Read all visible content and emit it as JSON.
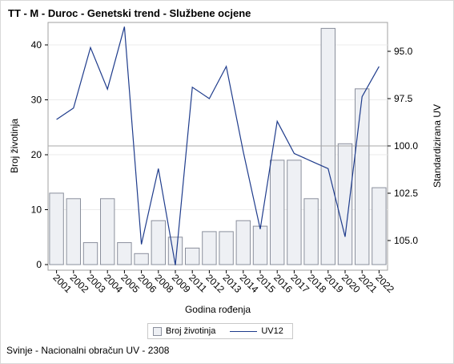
{
  "title": "TT - M - Duroc - Genetski trend - Službene ocjene",
  "footnote": "Svinje - Nacionalni obračun UV - 2308",
  "chart_data": {
    "type": "bar",
    "categories": [
      "2001",
      "2002",
      "2003",
      "2004",
      "2005",
      "2006",
      "2008",
      "2009",
      "2011",
      "2012",
      "2013",
      "2014",
      "2015",
      "2016",
      "2017",
      "2018",
      "2019",
      "2020",
      "2021",
      "2022"
    ],
    "series": [
      {
        "name": "Broj životinja",
        "axis": "left",
        "type": "bar",
        "values": [
          13,
          12,
          4,
          12,
          4,
          2,
          8,
          5,
          3,
          6,
          6,
          8,
          7,
          19,
          19,
          12,
          43,
          22,
          32,
          14
        ]
      },
      {
        "name": "UV12",
        "axis": "right",
        "type": "line",
        "values": [
          98.6,
          98.0,
          94.8,
          97.0,
          93.7,
          105.2,
          101.2,
          106.3,
          96.9,
          97.5,
          95.8,
          100.3,
          104.4,
          98.7,
          100.4,
          100.8,
          101.2,
          104.8,
          97.4,
          95.8
        ]
      }
    ],
    "xlabel": "Godina rođenja",
    "ylabel": "Broj životinja",
    "y2label": "Standardizirana UV",
    "ylim": [
      0,
      44
    ],
    "y2lim": [
      93.6,
      106.5
    ],
    "yticks": [
      "0",
      "10",
      "20",
      "30",
      "40"
    ],
    "y2ticks": [
      "95.0",
      "97.5",
      "100.0",
      "102.5",
      "105.0"
    ],
    "reference_line_y2": 100,
    "legend_position": "bottom",
    "colors": {
      "bar_fill": "#eef0f4",
      "bar_stroke": "#8a8f9c",
      "line": "#1f3c8c",
      "refline": "#a8a8a8"
    }
  }
}
